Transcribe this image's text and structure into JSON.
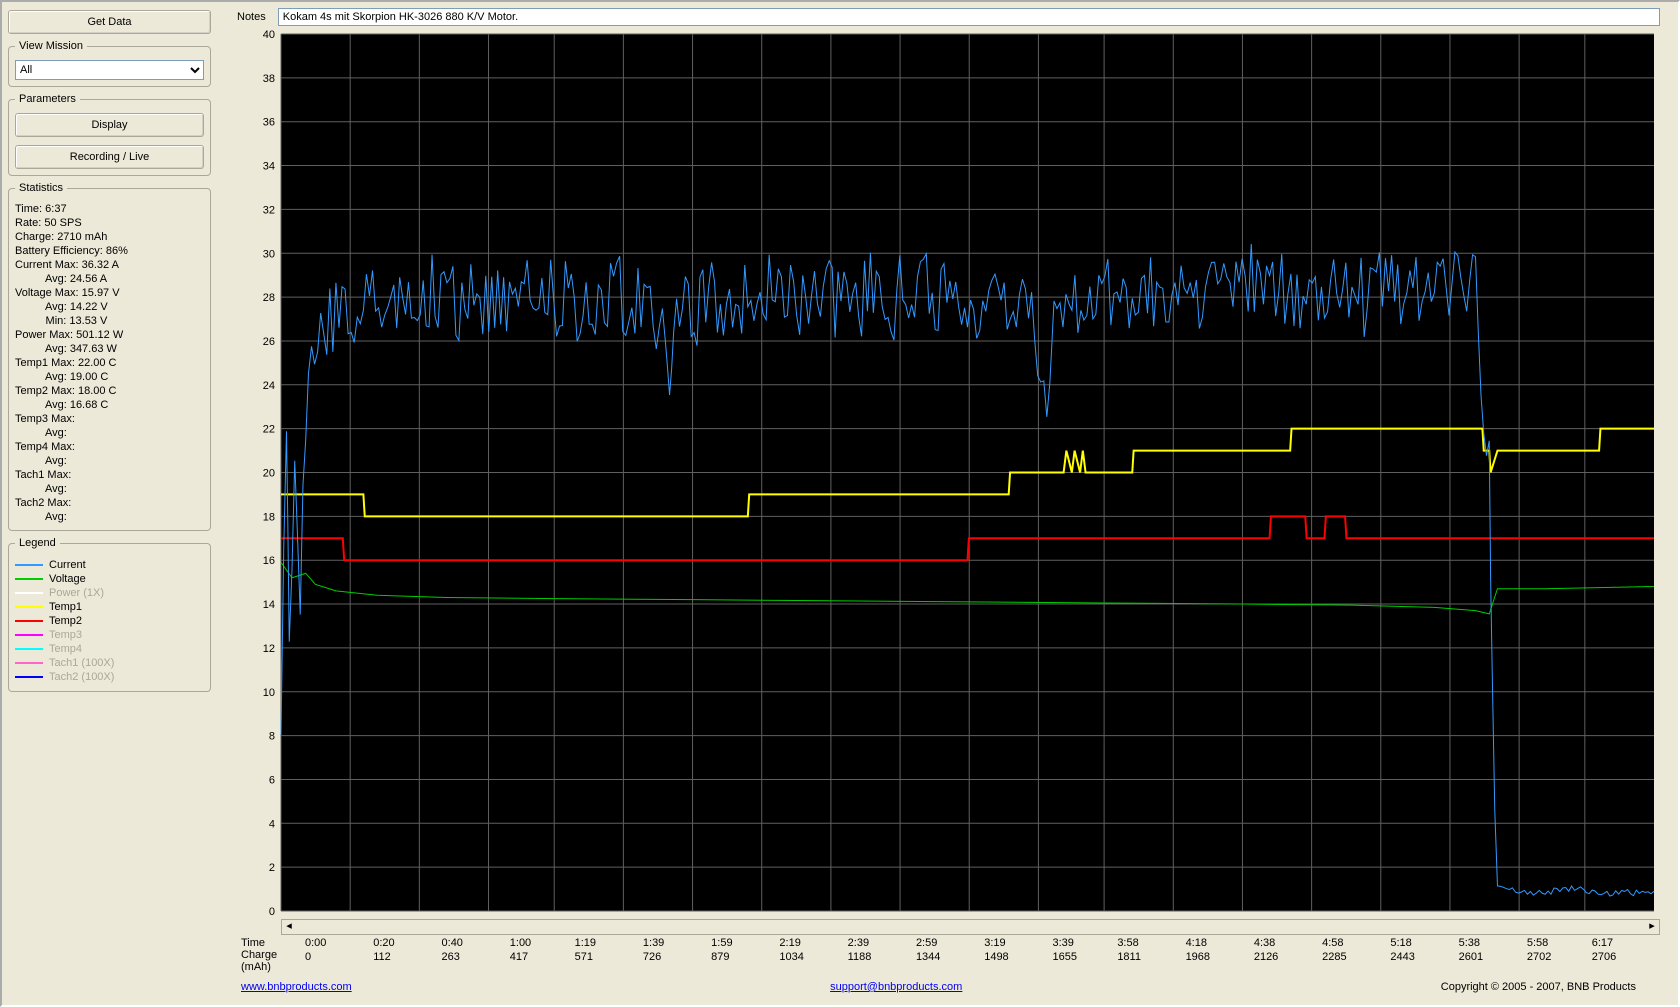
{
  "buttons": {
    "get_data": "Get Data",
    "display": "Display",
    "recording_live": "Recording / Live"
  },
  "view_mission": {
    "legend": "View Mission",
    "selected": "All"
  },
  "parameters_legend": "Parameters",
  "statistics": {
    "legend": "Statistics",
    "lines": [
      "Time: 6:37",
      "Rate: 50 SPS",
      "Charge: 2710 mAh",
      "Battery Efficiency: 86%",
      "Current Max: 36.32 A",
      "          Avg: 24.56 A",
      "Voltage Max: 15.97 V",
      "          Avg: 14.22 V",
      "          Min: 13.53 V",
      "Power Max: 501.12 W",
      "          Avg: 347.63 W",
      "Temp1 Max: 22.00 C",
      "          Avg: 19.00 C",
      "Temp2 Max: 18.00 C",
      "          Avg: 16.68 C",
      "Temp3 Max:",
      "          Avg:",
      "Temp4 Max:",
      "          Avg:",
      "Tach1 Max:",
      "          Avg:",
      "Tach2 Max:",
      "          Avg:"
    ]
  },
  "legend": {
    "title": "Legend",
    "items": [
      {
        "label": "Current",
        "color": "#3399ff",
        "muted": false
      },
      {
        "label": "Voltage",
        "color": "#00cc00",
        "muted": false
      },
      {
        "label": "Power   (1X)",
        "color": "#ffffff",
        "muted": true
      },
      {
        "label": "Temp1",
        "color": "#ffff00",
        "muted": false
      },
      {
        "label": "Temp2",
        "color": "#ff0000",
        "muted": false
      },
      {
        "label": "Temp3",
        "color": "#ff00ff",
        "muted": true
      },
      {
        "label": "Temp4",
        "color": "#00ffff",
        "muted": true
      },
      {
        "label": "Tach1  (100X)",
        "color": "#ff66cc",
        "muted": true
      },
      {
        "label": "Tach2  (100X)",
        "color": "#0000ff",
        "muted": true
      }
    ]
  },
  "notes": {
    "label": "Notes",
    "value": "Kokam 4s mit Skorpion HK-3026 880 K/V Motor."
  },
  "chart": {
    "type": "line",
    "background_color": "#000000",
    "grid_color": "#606060",
    "y": {
      "min": 0,
      "max": 40,
      "step": 2,
      "label_color": "#000000",
      "label_fontsize": 11
    },
    "x": {
      "domain": [
        0,
        397
      ],
      "ticks_sec": [
        0,
        20,
        40,
        60,
        79,
        99,
        119,
        139,
        159,
        179,
        199,
        219,
        238,
        258,
        278,
        298,
        318,
        338,
        358,
        377
      ],
      "time_labels": [
        "0:00",
        "0:20",
        "0:40",
        "1:00",
        "1:19",
        "1:39",
        "1:59",
        "2:19",
        "2:39",
        "2:59",
        "3:19",
        "3:39",
        "3:58",
        "4:18",
        "4:38",
        "4:58",
        "5:18",
        "5:38",
        "5:58",
        "6:17"
      ],
      "charge_labels": [
        "0",
        "112",
        "263",
        "417",
        "571",
        "726",
        "879",
        "1034",
        "1188",
        "1344",
        "1498",
        "1655",
        "1811",
        "1968",
        "2126",
        "2285",
        "2443",
        "2601",
        "2702",
        "2706"
      ],
      "row_label_time": "Time",
      "row_label_charge": "Charge",
      "row_label_unit": "(mAh)"
    },
    "series": {
      "current": {
        "color": "#3399ff",
        "width": 1,
        "baseline": [
          [
            0,
            9.2
          ],
          [
            4,
            21
          ],
          [
            6,
            12
          ],
          [
            10,
            20.5
          ],
          [
            14,
            15
          ],
          [
            20,
            25
          ],
          [
            40,
            27.5
          ],
          [
            80,
            28
          ],
          [
            110,
            28
          ],
          [
            160,
            27.7
          ],
          [
            190,
            27.8
          ],
          [
            220,
            27.7
          ],
          [
            260,
            27.9
          ],
          [
            280,
            26.5
          ],
          [
            283,
            23
          ],
          [
            286,
            27.5
          ],
          [
            320,
            27.8
          ],
          [
            340,
            28
          ],
          [
            360,
            28.3
          ],
          [
            380,
            28
          ],
          [
            410,
            28.2
          ],
          [
            440,
            28
          ],
          [
            470,
            28.1
          ],
          [
            500,
            27.6
          ],
          [
            540,
            28
          ],
          [
            560,
            24
          ],
          [
            563,
            28
          ],
          [
            600,
            28
          ],
          [
            640,
            28.2
          ],
          [
            680,
            28.3
          ],
          [
            720,
            28.3
          ],
          [
            760,
            28.2
          ],
          [
            800,
            28.3
          ],
          [
            840,
            28.3
          ],
          [
            870,
            28.6
          ],
          [
            880,
            20
          ],
          [
            882,
            10
          ],
          [
            886,
            1.0
          ],
          [
            910,
            0.8
          ],
          [
            940,
            1.0
          ],
          [
            970,
            0.8
          ],
          [
            1000,
            0.9
          ]
        ],
        "noise_amp": 2.2,
        "noise_points_per_seg": 6
      },
      "voltage": {
        "color": "#00cc00",
        "width": 1,
        "points": [
          [
            0,
            15.9
          ],
          [
            8,
            15.2
          ],
          [
            18,
            15.4
          ],
          [
            25,
            14.9
          ],
          [
            40,
            14.6
          ],
          [
            70,
            14.4
          ],
          [
            120,
            14.3
          ],
          [
            200,
            14.25
          ],
          [
            300,
            14.2
          ],
          [
            400,
            14.15
          ],
          [
            500,
            14.1
          ],
          [
            600,
            14.05
          ],
          [
            700,
            14.0
          ],
          [
            780,
            13.95
          ],
          [
            840,
            13.85
          ],
          [
            870,
            13.7
          ],
          [
            880,
            13.55
          ],
          [
            886,
            14.7
          ],
          [
            920,
            14.7
          ],
          [
            960,
            14.75
          ],
          [
            1000,
            14.8
          ]
        ]
      },
      "temp1": {
        "color": "#ffff00",
        "width": 2,
        "points": [
          [
            0,
            19
          ],
          [
            60,
            19
          ],
          [
            61,
            18
          ],
          [
            340,
            18
          ],
          [
            341,
            19
          ],
          [
            530,
            19
          ],
          [
            531,
            20
          ],
          [
            570,
            20
          ],
          [
            572,
            21
          ],
          [
            576,
            20
          ],
          [
            578,
            21
          ],
          [
            582,
            20
          ],
          [
            584,
            21
          ],
          [
            586,
            20
          ],
          [
            620,
            20
          ],
          [
            621,
            21
          ],
          [
            735,
            21
          ],
          [
            736,
            22
          ],
          [
            875,
            22
          ],
          [
            876,
            21
          ],
          [
            880,
            21
          ],
          [
            881,
            20
          ],
          [
            886,
            21
          ],
          [
            960,
            21
          ],
          [
            961,
            22
          ],
          [
            1000,
            22
          ]
        ]
      },
      "temp2": {
        "color": "#ff0000",
        "width": 2,
        "points": [
          [
            0,
            17
          ],
          [
            45,
            17
          ],
          [
            46,
            16
          ],
          [
            500,
            16
          ],
          [
            501,
            17
          ],
          [
            720,
            17
          ],
          [
            721,
            18
          ],
          [
            746,
            18
          ],
          [
            747,
            17
          ],
          [
            760,
            17
          ],
          [
            761,
            18
          ],
          [
            775,
            18
          ],
          [
            776,
            17
          ],
          [
            1000,
            17
          ]
        ]
      }
    }
  },
  "footer": {
    "url": "www.bnbproducts.com",
    "email": "support@bnbproducts.com",
    "copyright": "Copyright © 2005 - 2007, BNB Products"
  }
}
